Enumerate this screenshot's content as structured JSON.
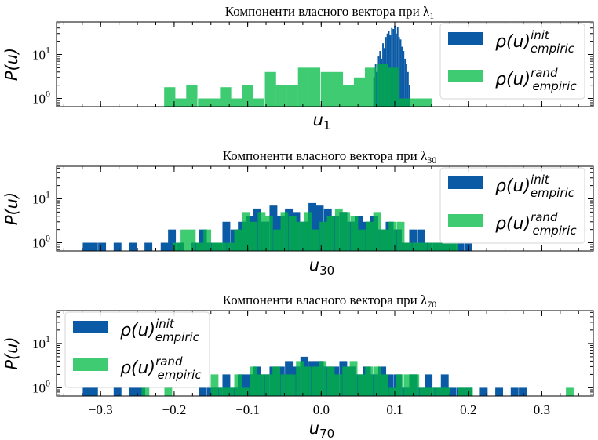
{
  "colors": {
    "init": "#0b5aa5",
    "rand": "#3ecb71",
    "overlap": "#05a058"
  },
  "legend": {
    "init_base": "ρ(u)",
    "init_sup": "init",
    "init_sub": "empiric",
    "rand_base": "ρ(u)",
    "rand_sup": "rand",
    "rand_sub": "empiric"
  },
  "chart_data": [
    {
      "type": "bar",
      "title": "Компоненти власного вектора при λ",
      "title_sub": "1",
      "xlabel": "u",
      "xlabel_sub": "1",
      "ylabel": "P(u)",
      "yscale": "log",
      "ylim": [
        0.65,
        55
      ],
      "yticks": [
        {
          "value": 1,
          "base": "10",
          "exp": "0"
        },
        {
          "value": 10,
          "base": "10",
          "exp": "1"
        }
      ],
      "xlim": [
        -0.36,
        0.37
      ],
      "show_xticklabels": false,
      "legend_position": "top-right",
      "series": [
        {
          "name": "init",
          "x": [
            0.072,
            0.074,
            0.076,
            0.078,
            0.08,
            0.082,
            0.084,
            0.086,
            0.088,
            0.09,
            0.092,
            0.094,
            0.096,
            0.098,
            0.1,
            0.102,
            0.104,
            0.106,
            0.108,
            0.11,
            0.112,
            0.114,
            0.116,
            0.118,
            0.12
          ],
          "values": [
            3,
            6,
            4,
            9,
            12,
            8,
            18,
            14,
            25,
            30,
            35,
            28,
            40,
            38,
            45,
            30,
            42,
            25,
            22,
            15,
            12,
            8,
            6,
            4,
            2
          ],
          "bin_width": 0.002
        },
        {
          "name": "rand",
          "x": [
            -0.206,
            -0.191,
            -0.176,
            -0.16,
            -0.145,
            -0.13,
            -0.115,
            -0.1,
            -0.085,
            -0.069,
            -0.054,
            -0.039,
            -0.024,
            -0.009,
            0.007,
            0.022,
            0.037,
            0.052,
            0.067,
            0.083,
            0.098,
            0.113,
            0.128,
            0.143
          ],
          "values": [
            1.8,
            1,
            2,
            1,
            1,
            1.8,
            1,
            2,
            1,
            4,
            2,
            2,
            5,
            5,
            4,
            4,
            2,
            3,
            5,
            6,
            5,
            1,
            1,
            1
          ],
          "bin_width": 0.0152
        }
      ]
    },
    {
      "type": "bar",
      "title": "Компоненти власного вектора при λ",
      "title_sub": "30",
      "xlabel": "u",
      "xlabel_sub": "30",
      "ylabel": "P(u)",
      "yscale": "log",
      "ylim": [
        0.65,
        55
      ],
      "yticks": [
        {
          "value": 1,
          "base": "10",
          "exp": "0"
        },
        {
          "value": 10,
          "base": "10",
          "exp": "1"
        }
      ],
      "xlim": [
        -0.36,
        0.37
      ],
      "show_xticklabels": false,
      "legend_position": "top-right",
      "series": [
        {
          "name": "init",
          "x": [
            -0.319,
            -0.309,
            -0.298,
            -0.277,
            -0.256,
            -0.235,
            -0.213,
            -0.203,
            -0.192,
            -0.171,
            -0.161,
            -0.15,
            -0.14,
            -0.129,
            -0.118,
            -0.108,
            -0.097,
            -0.087,
            -0.076,
            -0.065,
            -0.055,
            -0.044,
            -0.034,
            -0.023,
            -0.012,
            -0.002,
            0.009,
            0.019,
            0.03,
            0.041,
            0.051,
            0.062,
            0.072,
            0.083,
            0.093,
            0.104,
            0.115,
            0.125,
            0.136,
            0.146,
            0.157,
            0.168,
            0.178,
            0.189,
            0.2
          ],
          "values": [
            1,
            1,
            1,
            1,
            1,
            1,
            1,
            2,
            1,
            1,
            2,
            1,
            1,
            3,
            2,
            3,
            4,
            6,
            3,
            7,
            4,
            6,
            5,
            3,
            8,
            7,
            6,
            4,
            5,
            3,
            4,
            3,
            4,
            2,
            3,
            2,
            1,
            2,
            2,
            1,
            1,
            1,
            1,
            1,
            1
          ],
          "bin_width": 0.0106
        },
        {
          "name": "rand",
          "x": [
            -0.197,
            -0.186,
            -0.176,
            -0.165,
            -0.155,
            -0.144,
            -0.134,
            -0.123,
            -0.113,
            -0.102,
            -0.092,
            -0.081,
            -0.071,
            -0.06,
            -0.05,
            -0.039,
            -0.029,
            -0.018,
            -0.008,
            0.003,
            0.013,
            0.024,
            0.034,
            0.045,
            0.055,
            0.066,
            0.076,
            0.087,
            0.097,
            0.108,
            0.118,
            0.129,
            0.139,
            0.15,
            0.16,
            0.171,
            0.181
          ],
          "values": [
            1,
            2,
            2,
            1,
            2,
            1,
            1,
            1,
            2,
            5,
            3,
            5,
            4,
            2,
            5,
            4,
            3,
            5,
            2,
            3,
            4,
            6,
            5,
            4,
            2,
            3,
            5,
            2,
            3,
            3,
            1,
            1,
            1,
            1,
            1,
            1,
            1
          ],
          "bin_width": 0.0105
        }
      ]
    },
    {
      "type": "bar",
      "title": "Компоненти власного вектора при λ",
      "title_sub": "70",
      "xlabel": "u",
      "xlabel_sub": "70",
      "ylabel": "P(u)",
      "yscale": "log",
      "ylim": [
        0.65,
        55
      ],
      "yticks": [
        {
          "value": 1,
          "base": "10",
          "exp": "0"
        },
        {
          "value": 10,
          "base": "10",
          "exp": "1"
        }
      ],
      "xlim": [
        -0.36,
        0.37
      ],
      "show_xticklabels": true,
      "xticks": [
        -0.3,
        -0.2,
        -0.1,
        0.0,
        0.1,
        0.2,
        0.3
      ],
      "xticklabels": [
        "−0.3",
        "−0.2",
        "−0.1",
        "0.0",
        "0.1",
        "0.2",
        "0.3"
      ],
      "legend_position": "top-left",
      "series": [
        {
          "name": "init",
          "x": [
            -0.319,
            -0.309,
            -0.277,
            -0.256,
            -0.245,
            -0.161,
            -0.15,
            -0.14,
            -0.129,
            -0.118,
            -0.108,
            -0.097,
            -0.087,
            -0.076,
            -0.065,
            -0.055,
            -0.044,
            -0.034,
            -0.023,
            -0.012,
            -0.002,
            0.009,
            0.019,
            0.03,
            0.041,
            0.051,
            0.062,
            0.072,
            0.083,
            0.093,
            0.104,
            0.115,
            0.125,
            0.136,
            0.146,
            0.157,
            0.168,
            0.178,
            0.189,
            0.2,
            0.221,
            0.242,
            0.263,
            0.274
          ],
          "values": [
            1,
            1,
            1,
            1,
            1,
            1,
            1,
            1,
            2,
            1,
            2,
            2,
            3,
            2,
            3,
            3,
            4,
            3,
            5,
            4,
            4,
            3,
            3,
            4,
            3,
            2,
            3,
            2,
            3,
            2,
            2,
            1,
            2,
            1,
            2,
            1,
            2,
            1,
            1,
            1,
            1,
            1,
            1,
            1
          ],
          "bin_width": 0.0106
        },
        {
          "name": "rand",
          "x": [
            -0.239,
            -0.208,
            -0.145,
            -0.134,
            -0.124,
            -0.113,
            -0.103,
            -0.092,
            -0.082,
            -0.071,
            -0.061,
            -0.05,
            -0.04,
            -0.029,
            -0.019,
            -0.008,
            0.002,
            0.013,
            0.023,
            0.034,
            0.044,
            0.055,
            0.065,
            0.076,
            0.086,
            0.097,
            0.107,
            0.118,
            0.128,
            0.139,
            0.149,
            0.16,
            0.17,
            0.191,
            0.201,
            0.338
          ],
          "values": [
            1,
            1,
            2,
            1,
            1,
            2,
            1,
            3,
            2,
            2,
            3,
            2,
            2,
            4,
            3,
            3,
            4,
            3,
            2,
            3,
            4,
            2,
            3,
            3,
            2,
            1,
            2,
            2,
            2,
            1,
            1,
            1,
            1,
            1,
            1,
            1
          ],
          "bin_width": 0.0105
        }
      ]
    }
  ]
}
